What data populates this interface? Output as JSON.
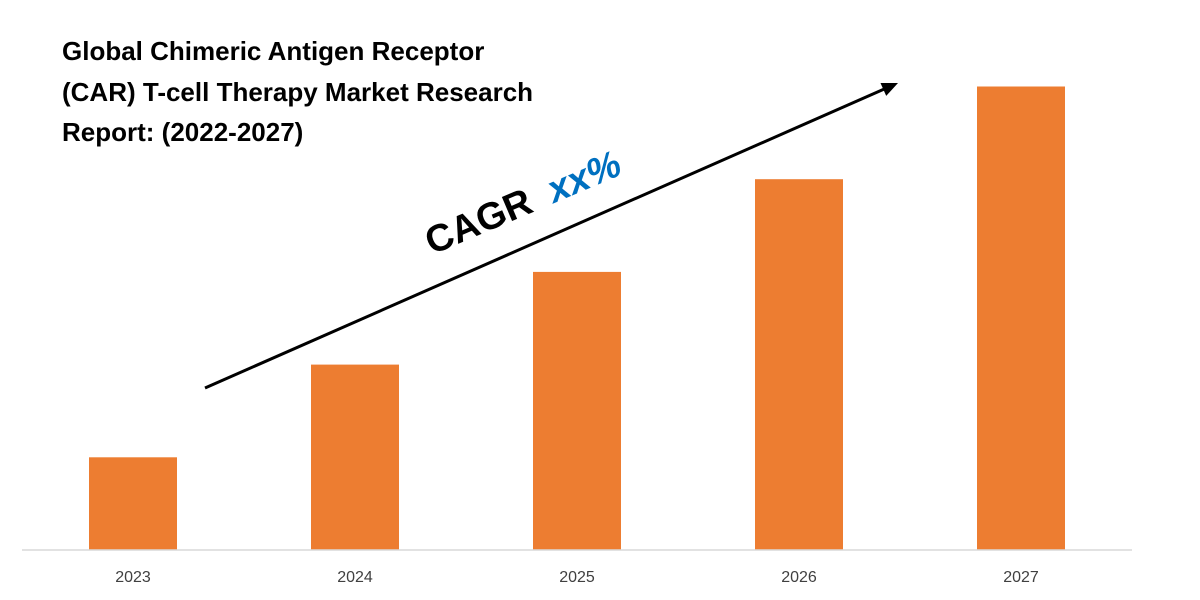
{
  "chart_data": {
    "type": "bar",
    "title_lines": [
      "Global Chimeric Antigen Receptor",
      "(CAR) T-cell Therapy Market Research",
      "Report: (2022-2027)"
    ],
    "categories": [
      "2023",
      "2024",
      "2025",
      "2026",
      "2027"
    ],
    "values": [
      1,
      2,
      3,
      4,
      5
    ],
    "ylim": [
      0,
      5.2
    ],
    "grid": false,
    "legend": "none",
    "annotation": {
      "prefix": "CAGR",
      "value": "xx%"
    },
    "colors": {
      "bar": "#ED7D31",
      "annotation_prefix": "#000000",
      "annotation_value": "#0070C0",
      "axis": "#D9D9D9",
      "arrow": "#000000"
    }
  }
}
